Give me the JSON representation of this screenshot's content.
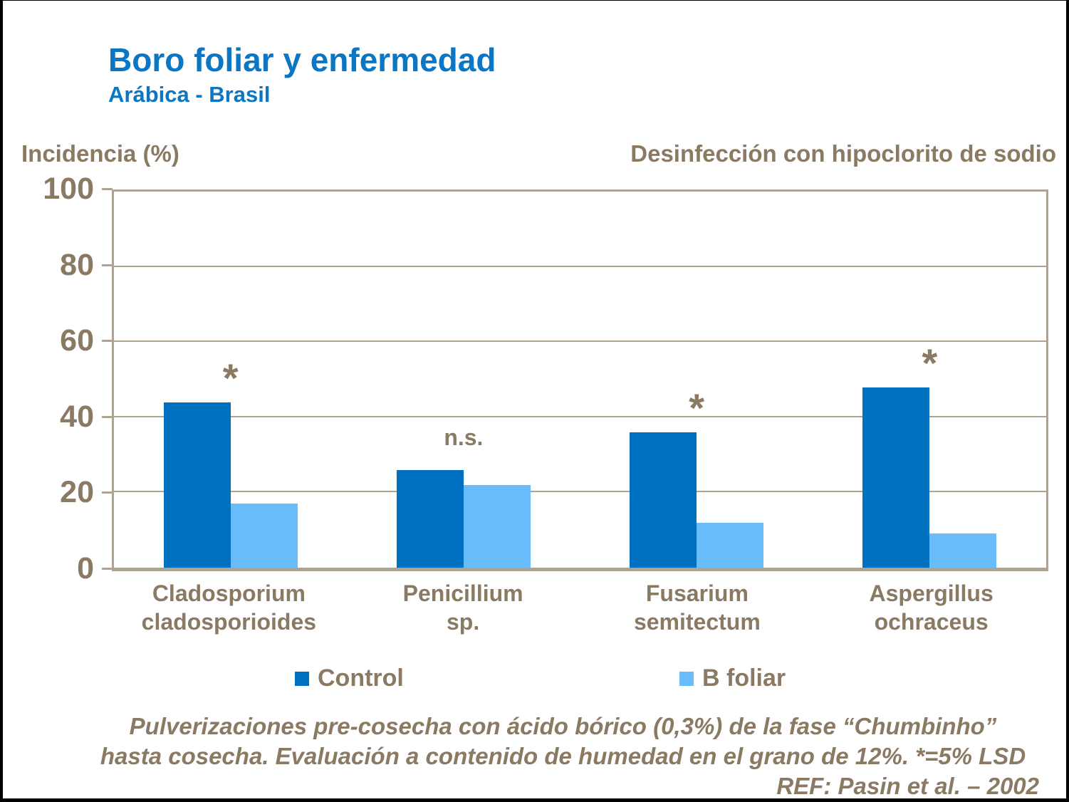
{
  "slide": {
    "title": "Boro foliar y enfermedad",
    "subtitle": "Arábica - Brasil",
    "incidence_label": "Incidencia (%)",
    "right_header": "Desinfección con hipoclorito de sodio",
    "footer_line1": "Pulverizaciones pre-cosecha con ácido bórico (0,3%) de la fase “Chumbinho”",
    "footer_line2": "hasta cosecha. Evaluación a contenido de humedad en el grano de 12%. *=5% LSD",
    "footer_ref": "REF: Pasin et al. – 2002"
  },
  "colors": {
    "title_blue": "#0B76C4",
    "control_bar": "#0070C0",
    "bfoliar_bar": "#68BCFB",
    "text_brown": "#8A7A64",
    "line_tan": "#AFA290"
  },
  "chart_data": {
    "type": "bar",
    "title": "Boro foliar y enfermedad",
    "subtitle": "Arábica - Brasil",
    "annotation_header": "Desinfección con hipoclorito de sodio",
    "ylabel": "Incidencia (%)",
    "categories": [
      "Cladosporium cladosporioides",
      "Penicillium sp.",
      "Fusarium semitectum",
      "Aspergillus ochraceus"
    ],
    "category_lines": [
      [
        "Cladosporium",
        "cladosporioides"
      ],
      [
        "Penicillium",
        "sp."
      ],
      [
        "Fusarium",
        "semitectum"
      ],
      [
        "Aspergillus",
        "ochraceus"
      ]
    ],
    "series": [
      {
        "name": "Control",
        "values": [
          44,
          26,
          36,
          48
        ]
      },
      {
        "name": "B foliar",
        "values": [
          17,
          22,
          12,
          9
        ]
      }
    ],
    "significance": [
      "*",
      "n.s.",
      "*",
      "*"
    ],
    "ylim": [
      0,
      100
    ],
    "yticks": [
      0,
      20,
      40,
      60,
      80,
      100
    ],
    "grid": true,
    "legend_position": "bottom",
    "footnote": "Pulverizaciones pre-cosecha con ácido bórico (0,3%) de la fase “Chumbinho” hasta cosecha. Evaluación a contenido de humedad en el grano de 12%. *=5% LSD",
    "reference": "REF: Pasin et al. – 2002"
  }
}
